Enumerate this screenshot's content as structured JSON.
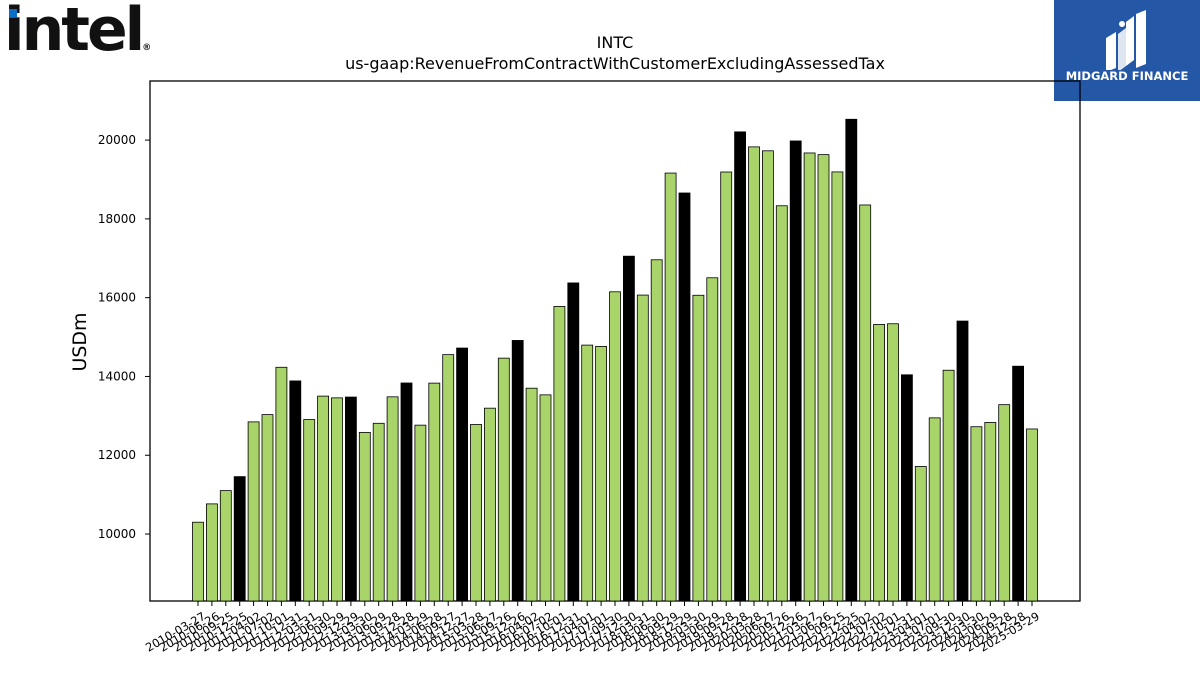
{
  "logo": {
    "brand_text": "intel",
    "reg_mark": "®"
  },
  "badge": {
    "name": "MIDGARD FINANCE",
    "icon": "midgard-finance-logo-icon"
  },
  "colors": {
    "bar_fill": "#a8d46a",
    "bar_highlight": "#000000",
    "badge_bg": "#2557a7"
  },
  "chart_data": {
    "type": "bar",
    "title": "INTC",
    "subtitle": "us-gaap:RevenueFromContractWithCustomerExcludingAssessedTax",
    "ylabel": "USDm",
    "xlabel": "",
    "ylim": [
      8300,
      21500
    ],
    "yticks": [
      10000,
      12000,
      14000,
      16000,
      18000,
      20000
    ],
    "grid": false,
    "categories": [
      "2010-03-27",
      "2010-06-26",
      "2010-09-25",
      "2010-12-25",
      "2011-04-02",
      "2011-07-02",
      "2011-10-01",
      "2011-12-31",
      "2012-03-31",
      "2012-06-30",
      "2012-09-29",
      "2012-12-29",
      "2013-03-30",
      "2013-06-29",
      "2013-09-28",
      "2013-12-28",
      "2014-03-29",
      "2014-06-28",
      "2014-09-27",
      "2014-12-27",
      "2015-03-28",
      "2015-06-27",
      "2015-09-26",
      "2015-12-26",
      "2016-04-02",
      "2016-07-02",
      "2016-10-01",
      "2016-12-31",
      "2017-04-01",
      "2017-07-01",
      "2017-09-30",
      "2017-12-30",
      "2018-03-31",
      "2018-06-30",
      "2018-09-29",
      "2018-12-29",
      "2019-03-30",
      "2019-06-29",
      "2019-09-28",
      "2019-12-28",
      "2020-03-28",
      "2020-06-27",
      "2020-09-26",
      "2020-12-26",
      "2021-03-27",
      "2021-06-26",
      "2021-09-25",
      "2021-12-25",
      "2022-04-02",
      "2022-07-02",
      "2022-10-01",
      "2022-12-31",
      "2023-04-01",
      "2023-07-01",
      "2023-09-30",
      "2023-12-30",
      "2024-03-30",
      "2024-06-29",
      "2024-09-28",
      "2024-12-28",
      "2025-03-29"
    ],
    "values": [
      10300,
      10765,
      11102,
      11457,
      12847,
      13032,
      14233,
      13887,
      12906,
      13501,
      13457,
      13477,
      12580,
      12811,
      13483,
      13834,
      12764,
      13831,
      14554,
      14721,
      12781,
      13195,
      14465,
      14914,
      13702,
      13533,
      15778,
      16374,
      14796,
      14763,
      16149,
      17053,
      16066,
      16962,
      19163,
      18657,
      16061,
      16505,
      19190,
      20209,
      19828,
      19728,
      18333,
      19978,
      19673,
      19631,
      19192,
      20528,
      18353,
      15321,
      15338,
      14042,
      11715,
      12949,
      14158,
      15406,
      12724,
      12833,
      13284,
      14260,
      12667
    ],
    "highlight_indices": [
      3,
      7,
      11,
      15,
      19,
      23,
      27,
      31,
      35,
      39,
      43,
      47,
      51,
      55,
      59
    ]
  }
}
